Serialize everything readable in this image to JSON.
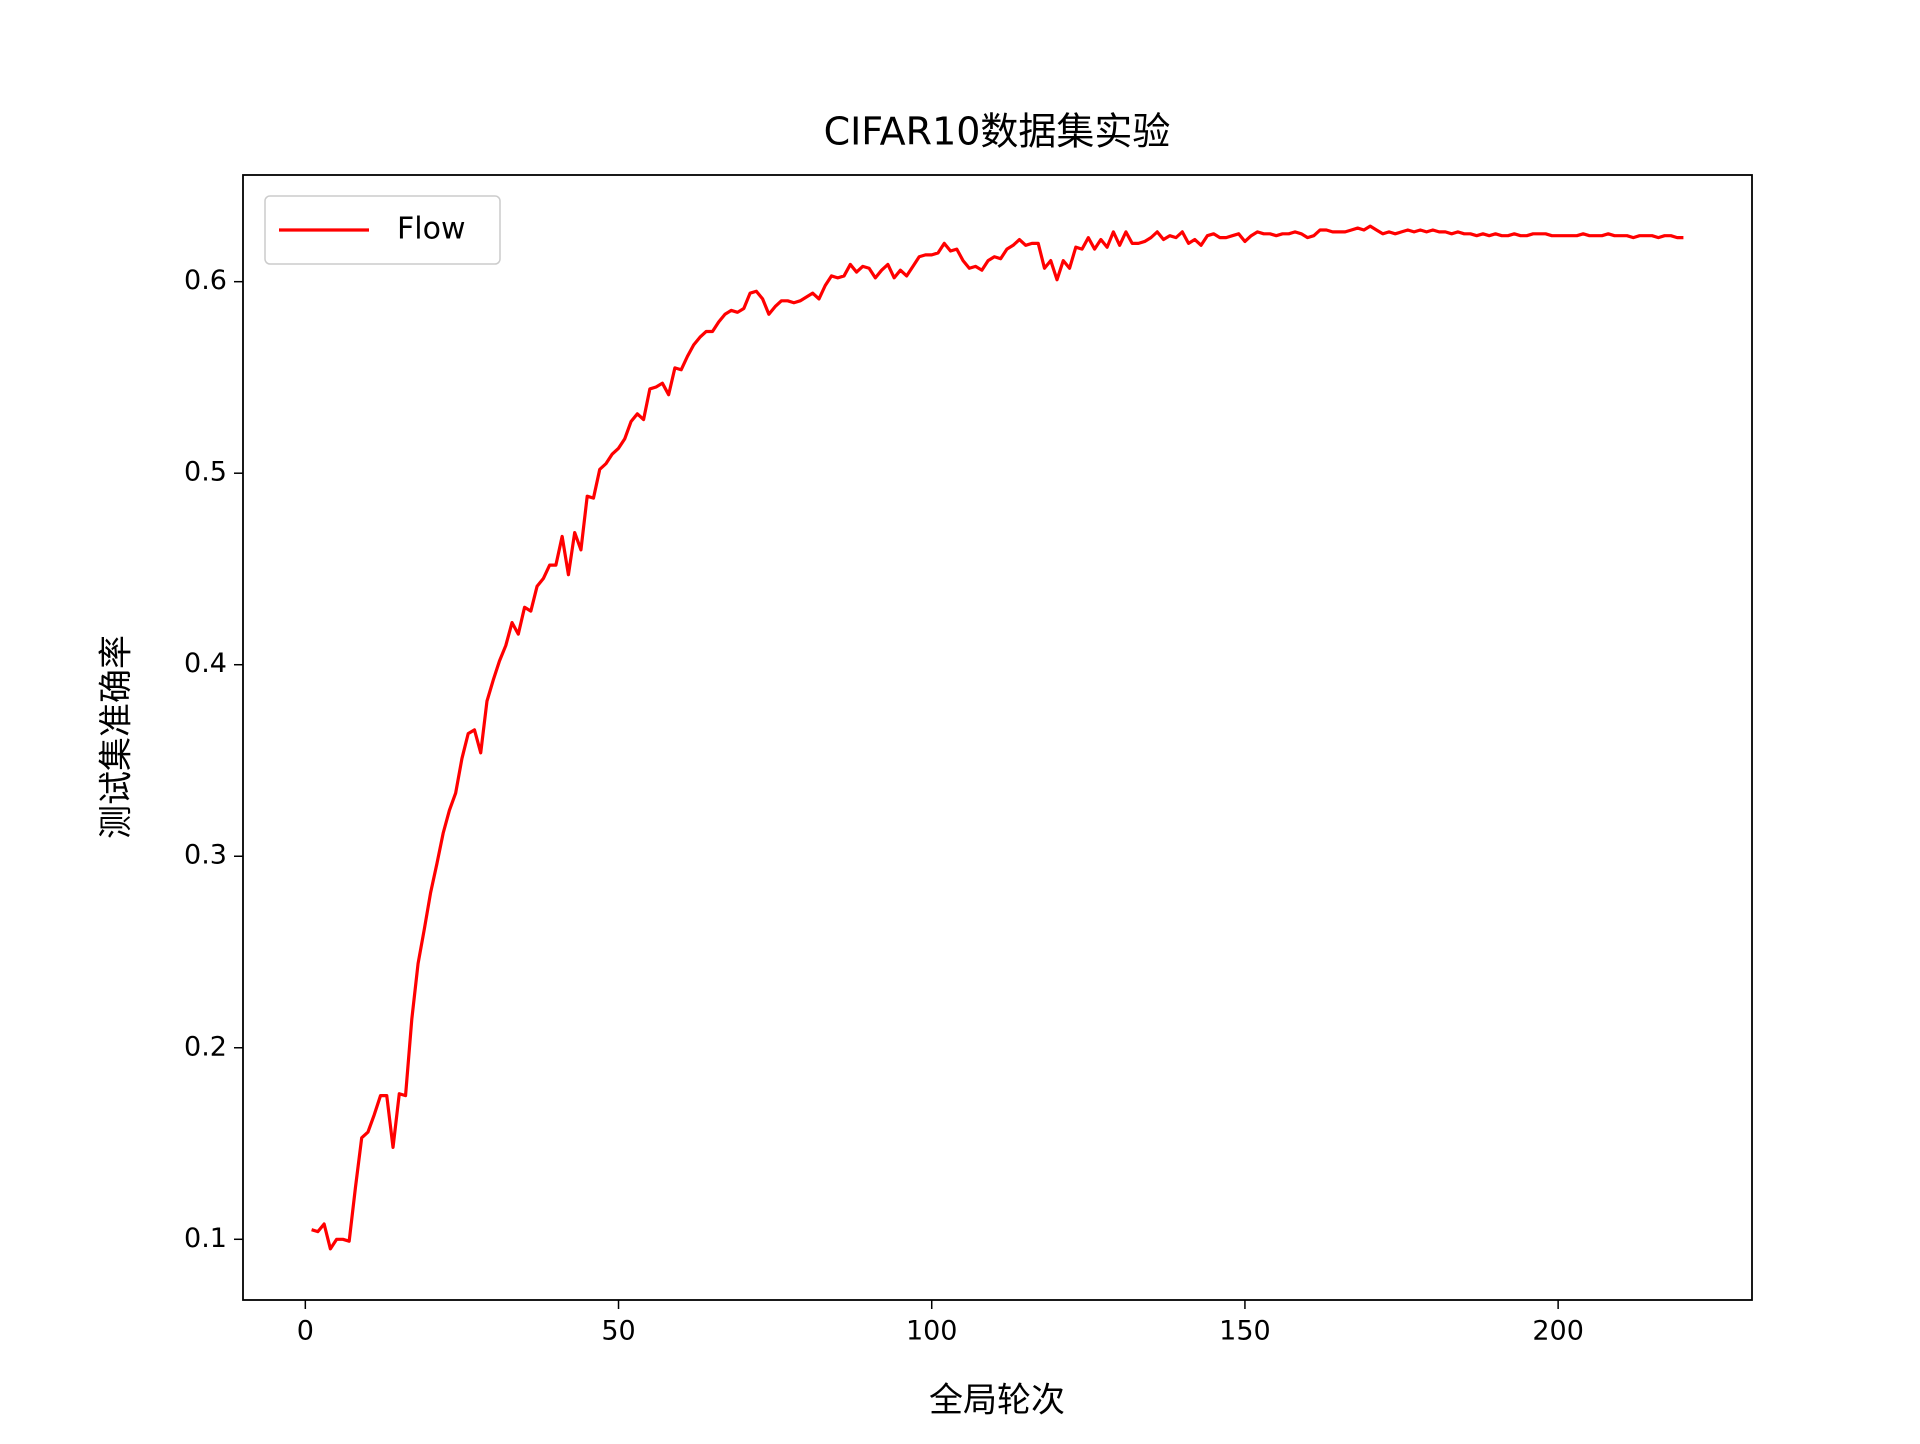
{
  "chart_data": {
    "type": "line",
    "title": "CIFAR10数据集实验",
    "x_label": "全局轮次",
    "y_label": "测试集准确率",
    "x": [
      1,
      2,
      3,
      4,
      5,
      6,
      7,
      8,
      9,
      10,
      11,
      12,
      13,
      14,
      15,
      16,
      17,
      18,
      19,
      20,
      21,
      22,
      23,
      24,
      25,
      26,
      27,
      28,
      29,
      30,
      31,
      32,
      33,
      34,
      35,
      36,
      37,
      38,
      39,
      40,
      41,
      42,
      43,
      44,
      45,
      46,
      47,
      48,
      49,
      50,
      51,
      52,
      53,
      54,
      55,
      56,
      57,
      58,
      59,
      60,
      61,
      62,
      63,
      64,
      65,
      66,
      67,
      68,
      69,
      70,
      71,
      72,
      73,
      74,
      75,
      76,
      77,
      78,
      79,
      80,
      81,
      82,
      83,
      84,
      85,
      86,
      87,
      88,
      89,
      90,
      91,
      92,
      93,
      94,
      95,
      96,
      97,
      98,
      99,
      100,
      101,
      102,
      103,
      104,
      105,
      106,
      107,
      108,
      109,
      110,
      111,
      112,
      113,
      114,
      115,
      116,
      117,
      118,
      119,
      120,
      121,
      122,
      123,
      124,
      125,
      126,
      127,
      128,
      129,
      130,
      131,
      132,
      133,
      134,
      135,
      136,
      137,
      138,
      139,
      140,
      141,
      142,
      143,
      144,
      145,
      146,
      147,
      148,
      149,
      150,
      151,
      152,
      153,
      154,
      155,
      156,
      157,
      158,
      159,
      160,
      161,
      162,
      163,
      164,
      165,
      166,
      167,
      168,
      169,
      170,
      171,
      172,
      173,
      174,
      175,
      176,
      177,
      178,
      179,
      180,
      181,
      182,
      183,
      184,
      185,
      186,
      187,
      188,
      189,
      190,
      191,
      192,
      193,
      194,
      195,
      196,
      197,
      198,
      199,
      200,
      201,
      202,
      203,
      204,
      205,
      206,
      207,
      208,
      209,
      210,
      211,
      212,
      213,
      214,
      215,
      216,
      217,
      218,
      219,
      220
    ],
    "series": [
      {
        "name": "Flow",
        "color": "#ff0000",
        "values": [
          0.105,
          0.104,
          0.108,
          0.095,
          0.1,
          0.1,
          0.099,
          0.127,
          0.153,
          0.156,
          0.165,
          0.175,
          0.175,
          0.148,
          0.176,
          0.175,
          0.215,
          0.244,
          0.262,
          0.281,
          0.296,
          0.312,
          0.324,
          0.333,
          0.351,
          0.364,
          0.366,
          0.354,
          0.381,
          0.392,
          0.402,
          0.41,
          0.422,
          0.416,
          0.43,
          0.428,
          0.441,
          0.445,
          0.452,
          0.452,
          0.467,
          0.447,
          0.469,
          0.46,
          0.488,
          0.487,
          0.502,
          0.505,
          0.51,
          0.513,
          0.518,
          0.527,
          0.531,
          0.528,
          0.544,
          0.545,
          0.547,
          0.541,
          0.555,
          0.554,
          0.561,
          0.567,
          0.571,
          0.574,
          0.574,
          0.579,
          0.583,
          0.585,
          0.584,
          0.586,
          0.594,
          0.595,
          0.591,
          0.583,
          0.587,
          0.59,
          0.59,
          0.589,
          0.59,
          0.592,
          0.594,
          0.591,
          0.598,
          0.603,
          0.602,
          0.603,
          0.609,
          0.605,
          0.608,
          0.607,
          0.602,
          0.606,
          0.609,
          0.602,
          0.606,
          0.603,
          0.608,
          0.613,
          0.614,
          0.614,
          0.615,
          0.62,
          0.616,
          0.617,
          0.611,
          0.607,
          0.608,
          0.606,
          0.611,
          0.613,
          0.612,
          0.617,
          0.619,
          0.622,
          0.619,
          0.62,
          0.62,
          0.607,
          0.611,
          0.601,
          0.611,
          0.607,
          0.618,
          0.617,
          0.623,
          0.617,
          0.622,
          0.618,
          0.626,
          0.619,
          0.626,
          0.62,
          0.62,
          0.621,
          0.623,
          0.626,
          0.622,
          0.624,
          0.623,
          0.626,
          0.62,
          0.622,
          0.619,
          0.624,
          0.625,
          0.623,
          0.623,
          0.624,
          0.625,
          0.621,
          0.624,
          0.626,
          0.625,
          0.625,
          0.624,
          0.625,
          0.625,
          0.626,
          0.625,
          0.623,
          0.624,
          0.627,
          0.627,
          0.626,
          0.626,
          0.626,
          0.627,
          0.628,
          0.627,
          0.629,
          0.627,
          0.625,
          0.626,
          0.625,
          0.626,
          0.627,
          0.626,
          0.627,
          0.626,
          0.627,
          0.626,
          0.626,
          0.625,
          0.626,
          0.625,
          0.625,
          0.624,
          0.625,
          0.624,
          0.625,
          0.624,
          0.624,
          0.625,
          0.624,
          0.624,
          0.625,
          0.625,
          0.625,
          0.624,
          0.624,
          0.624,
          0.624,
          0.624,
          0.625,
          0.624,
          0.624,
          0.624,
          0.625,
          0.624,
          0.624,
          0.624,
          0.623,
          0.624,
          0.624,
          0.624,
          0.623,
          0.624,
          0.624,
          0.623,
          0.623
        ]
      }
    ],
    "xlim": [
      -9.95,
      230.95
    ],
    "xticks": [
      0,
      50,
      100,
      150,
      200
    ],
    "ylim": [
      0.0683,
      0.6557
    ],
    "yticks": [
      0.1,
      0.2,
      0.3,
      0.4,
      0.5,
      0.6
    ],
    "legend": "upper left"
  }
}
